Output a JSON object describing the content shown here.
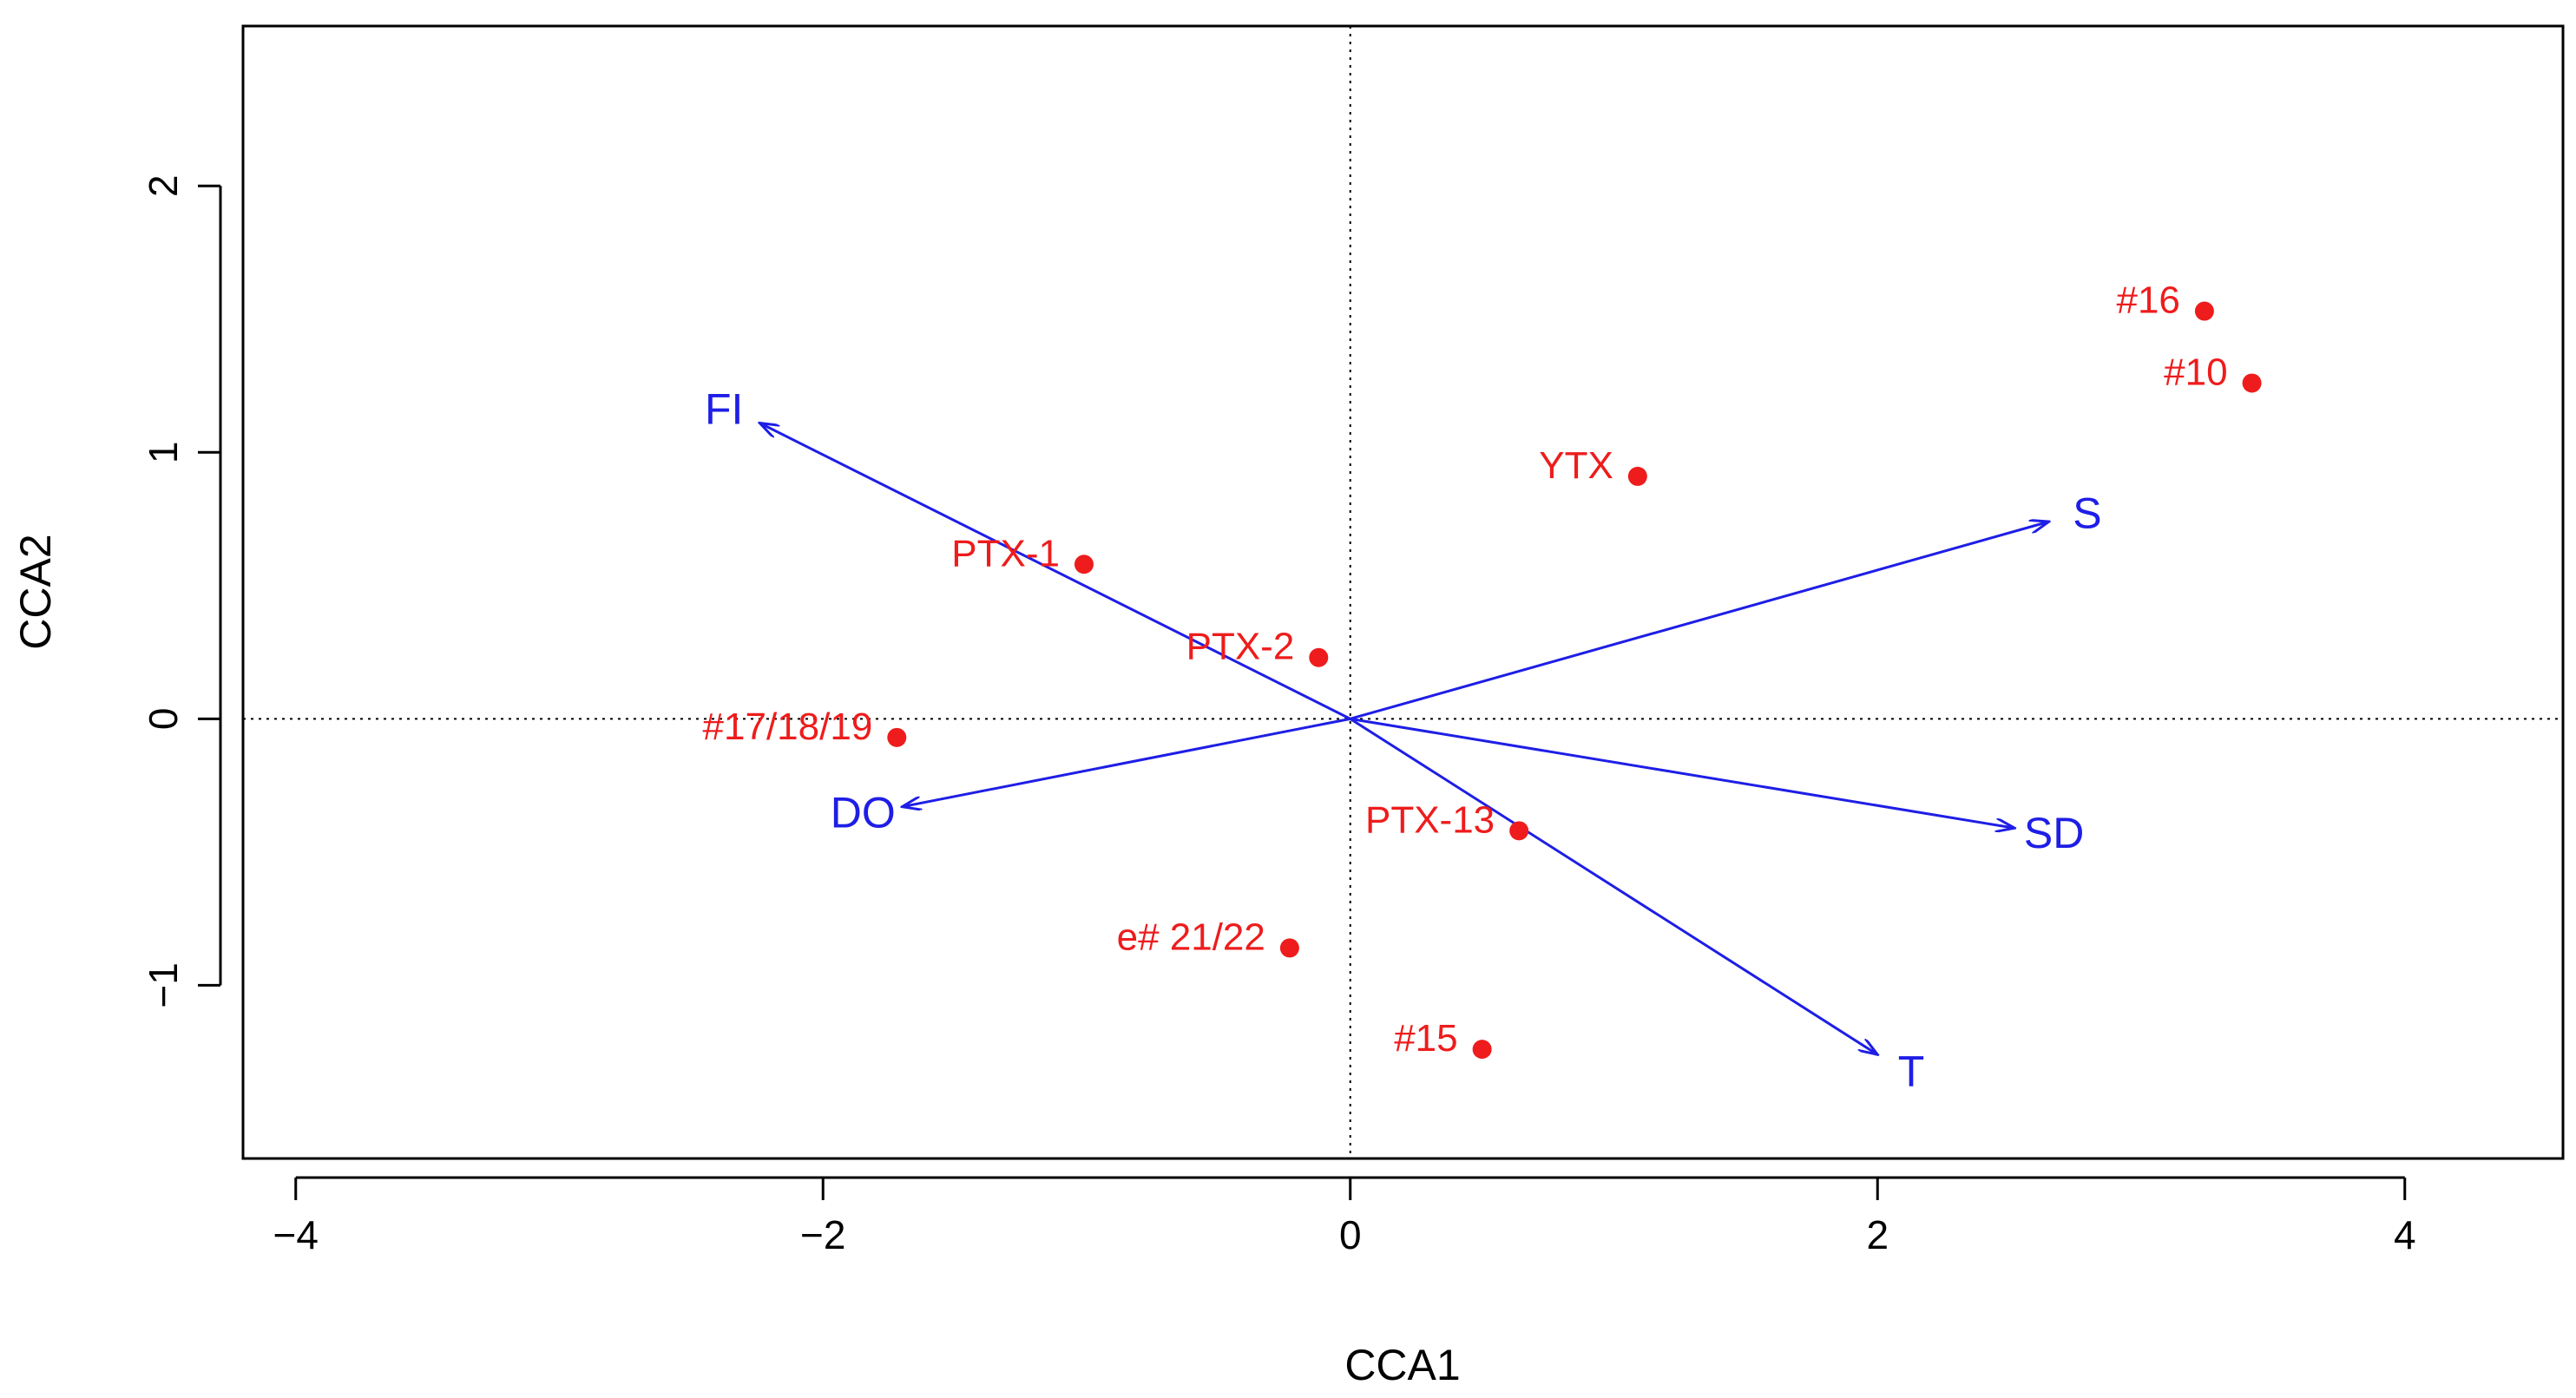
{
  "chart_data": {
    "type": "scatter",
    "title": "",
    "xlabel": "CCA1",
    "ylabel": "CCA2",
    "xlim": [
      -4.2,
      4.6
    ],
    "ylim": [
      -1.65,
      2.6
    ],
    "xticks": [
      -4,
      -2,
      0,
      2,
      4
    ],
    "yticks": [
      -1,
      0,
      1,
      2
    ],
    "xtick_labels": [
      "−4",
      "−2",
      "0",
      "2",
      "4"
    ],
    "ytick_labels": [
      "−1",
      "0",
      "1",
      "2"
    ],
    "reference_lines": {
      "x": 0,
      "y": 0,
      "style": "dotted"
    },
    "colors": {
      "sites": "#ee1c1c",
      "vectors": "#1e1ee6",
      "axis": "#000000"
    },
    "sites": [
      {
        "label": "#16",
        "x": 3.24,
        "y": 1.53
      },
      {
        "label": "#10",
        "x": 3.42,
        "y": 1.26
      },
      {
        "label": "YTX",
        "x": 1.09,
        "y": 0.91
      },
      {
        "label": "PTX-1",
        "x": -1.01,
        "y": 0.58
      },
      {
        "label": "PTX-2",
        "x": -0.12,
        "y": 0.23
      },
      {
        "label": "#17/18/19",
        "x": -1.72,
        "y": -0.07
      },
      {
        "label": "PTX-13",
        "x": 0.64,
        "y": -0.42
      },
      {
        "label": "e# 21/22",
        "x": -0.23,
        "y": -0.86
      },
      {
        "label": "#15",
        "x": 0.5,
        "y": -1.24
      }
    ],
    "vectors": [
      {
        "label": "FI",
        "x": -2.24,
        "y": 1.11
      },
      {
        "label": "S",
        "x": 2.65,
        "y": 0.74
      },
      {
        "label": "SD",
        "x": 2.52,
        "y": -0.41
      },
      {
        "label": "DO",
        "x": -1.7,
        "y": -0.33
      },
      {
        "label": "T",
        "x": 2.0,
        "y": -1.26
      }
    ]
  }
}
